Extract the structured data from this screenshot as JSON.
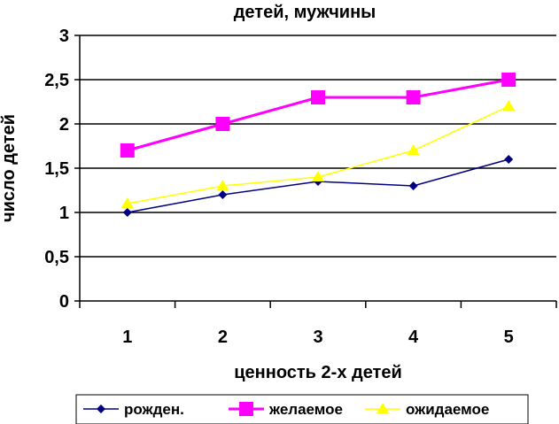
{
  "chart_data": {
    "type": "line",
    "title": "детей, мужчины",
    "xlabel": "ценность 2-х детей",
    "ylabel": "число детей",
    "categories": [
      "1",
      "2",
      "3",
      "4",
      "5"
    ],
    "y_ticks": [
      "0",
      "0,5",
      "1",
      "1,5",
      "2",
      "2,5",
      "3"
    ],
    "ylim": [
      0,
      3
    ],
    "grid": "horizontal",
    "legend_position": "bottom",
    "series": [
      {
        "name": "рожден.",
        "values": [
          1.0,
          1.2,
          1.35,
          1.3,
          1.6
        ],
        "color": "#000080",
        "marker": "diamond"
      },
      {
        "name": "желаемое",
        "values": [
          1.7,
          2.0,
          2.3,
          2.3,
          2.5
        ],
        "color": "#ff00ff",
        "marker": "square"
      },
      {
        "name": "ожидаемое",
        "values": [
          1.1,
          1.3,
          1.4,
          1.7,
          2.2
        ],
        "color": "#ffff00",
        "marker": "triangle"
      }
    ]
  }
}
